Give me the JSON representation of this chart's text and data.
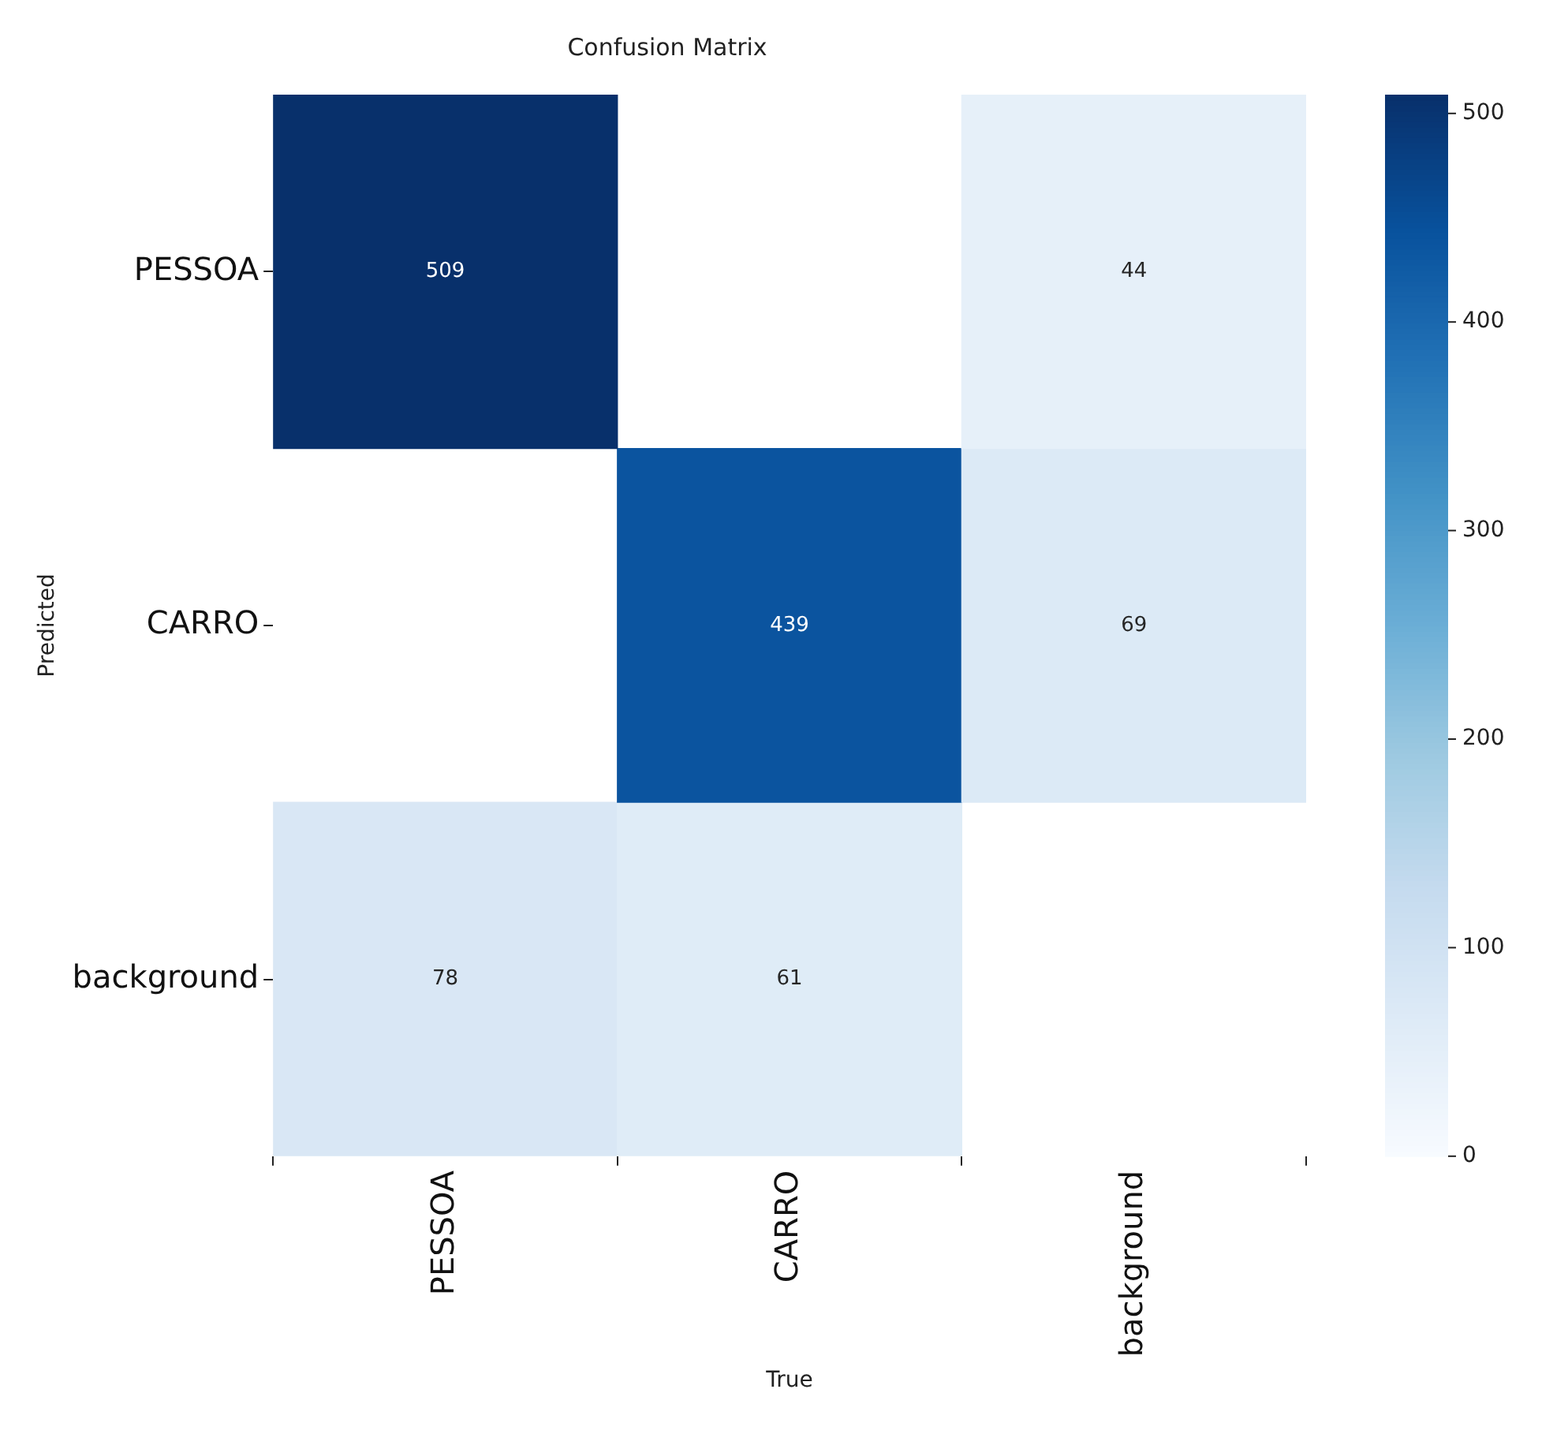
{
  "chart_data": {
    "type": "heatmap",
    "title": "Confusion Matrix",
    "xlabel": "True",
    "ylabel": "Predicted",
    "categories": [
      "PESSOA",
      "CARRO",
      "background"
    ],
    "y_categories": [
      "PESSOA",
      "CARRO",
      "background"
    ],
    "cells": [
      [
        509,
        null,
        44
      ],
      [
        null,
        439,
        69
      ],
      [
        78,
        61,
        null
      ]
    ],
    "clim": [
      0,
      509
    ],
    "cticks": [
      0,
      100,
      200,
      300,
      400,
      500
    ],
    "data_labels": true,
    "grid": false,
    "legend": false
  }
}
